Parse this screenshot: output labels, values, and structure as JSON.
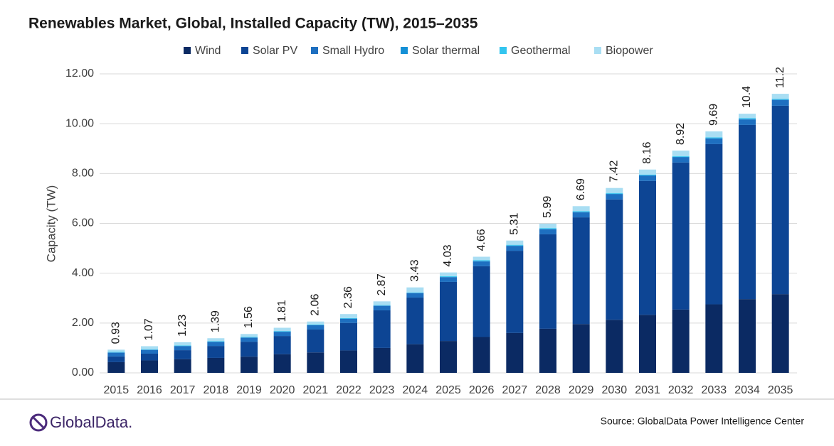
{
  "chart_data": {
    "type": "stacked-bar",
    "title": "Renewables Market, Global, Installed Capacity (TW), 2015–2035",
    "y_label": "Capacity (TW)",
    "categories": [
      "2015",
      "2016",
      "2017",
      "2018",
      "2019",
      "2020",
      "2021",
      "2022",
      "2023",
      "2024",
      "2025",
      "2026",
      "2027",
      "2028",
      "2029",
      "2030",
      "2031",
      "2032",
      "2033",
      "2034",
      "2035"
    ],
    "series": [
      {
        "name": "Wind",
        "color": "#0b2a63",
        "values": [
          0.43,
          0.5,
          0.55,
          0.6,
          0.65,
          0.75,
          0.82,
          0.9,
          1.0,
          1.15,
          1.28,
          1.44,
          1.6,
          1.77,
          1.96,
          2.13,
          2.33,
          2.54,
          2.75,
          2.96,
          3.16
        ]
      },
      {
        "name": "Solar PV",
        "color": "#0d4594",
        "values": [
          0.23,
          0.27,
          0.36,
          0.48,
          0.6,
          0.73,
          0.92,
          1.1,
          1.51,
          1.87,
          2.37,
          2.84,
          3.3,
          3.79,
          4.28,
          4.83,
          5.37,
          5.9,
          6.43,
          6.99,
          7.56
        ]
      },
      {
        "name": "Small Hydro",
        "color": "#1e6fc0",
        "values": [
          0.15,
          0.15,
          0.16,
          0.16,
          0.16,
          0.17,
          0.17,
          0.17,
          0.18,
          0.18,
          0.19,
          0.19,
          0.19,
          0.2,
          0.2,
          0.21,
          0.21,
          0.21,
          0.22,
          0.22,
          0.23
        ]
      },
      {
        "name": "Solar thermal",
        "color": "#1590d6",
        "values": [
          0.01,
          0.01,
          0.01,
          0.01,
          0.01,
          0.01,
          0.01,
          0.01,
          0.01,
          0.01,
          0.01,
          0.02,
          0.02,
          0.02,
          0.02,
          0.02,
          0.02,
          0.02,
          0.02,
          0.02,
          0.02
        ]
      },
      {
        "name": "Geothermal",
        "color": "#33c5ef",
        "values": [
          0.02,
          0.02,
          0.02,
          0.02,
          0.02,
          0.02,
          0.02,
          0.02,
          0.02,
          0.02,
          0.03,
          0.03,
          0.03,
          0.03,
          0.03,
          0.03,
          0.03,
          0.03,
          0.03,
          0.03,
          0.03
        ]
      },
      {
        "name": "Biopower",
        "color": "#a9def3",
        "values": [
          0.09,
          0.12,
          0.13,
          0.12,
          0.12,
          0.13,
          0.12,
          0.16,
          0.15,
          0.2,
          0.15,
          0.14,
          0.17,
          0.18,
          0.2,
          0.2,
          0.2,
          0.22,
          0.24,
          0.18,
          0.2
        ]
      }
    ],
    "totals": [
      0.93,
      1.07,
      1.23,
      1.39,
      1.56,
      1.81,
      2.06,
      2.36,
      2.87,
      3.43,
      4.03,
      4.66,
      5.31,
      5.99,
      6.69,
      7.42,
      8.16,
      8.92,
      9.69,
      10.4,
      11.2
    ],
    "ylim": [
      0,
      12
    ],
    "yticks": [
      {
        "value": 0,
        "label": "0.00"
      },
      {
        "value": 2,
        "label": "2.00"
      },
      {
        "value": 4,
        "label": "4.00"
      },
      {
        "value": 6,
        "label": "6.00"
      },
      {
        "value": 8,
        "label": "8.00"
      },
      {
        "value": 10,
        "label": "10.00"
      },
      {
        "value": 12,
        "label": "12.00"
      }
    ],
    "grid": true,
    "legend": "top"
  },
  "footer": {
    "logo": "GlobalData.",
    "source": "Source: GlobalData Power Intelligence Center"
  }
}
